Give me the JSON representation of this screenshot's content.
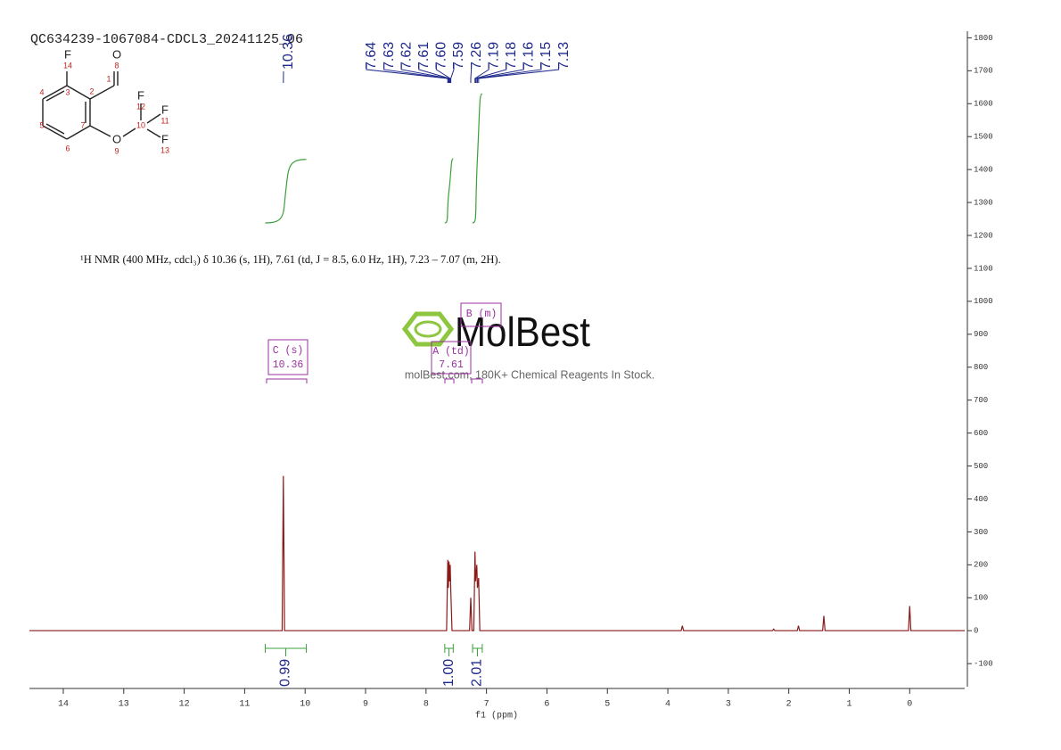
{
  "chart_data": {
    "type": "nmr",
    "title": "QC634239-1067084-CDCL3_20241125_06",
    "description": "¹H NMR (400 MHz, cdcl₃) δ 10.36 (s, 1H), 7.61 (td, J = 8.5, 6.0 Hz, 1H), 7.23 – 7.07 (m, 2H).",
    "x_label": "f1 (ppm)",
    "xlim": [
      14.56,
      -0.91
    ],
    "xticks": [
      14,
      13,
      12,
      11,
      10,
      9,
      8,
      7,
      6,
      5,
      4,
      3,
      2,
      1,
      0
    ],
    "ylim": [
      -170,
      1820
    ],
    "yticks": [
      -100,
      0,
      100,
      200,
      300,
      400,
      500,
      600,
      700,
      800,
      900,
      1000,
      1100,
      1200,
      1300,
      1400,
      1500,
      1600,
      1700,
      1800
    ],
    "color": "#8b1a1a",
    "x": [
      14.56,
      10.38,
      10.36,
      10.34,
      7.66,
      7.64,
      7.63,
      7.62,
      7.61,
      7.6,
      7.59,
      7.57,
      7.28,
      7.26,
      7.24,
      7.21,
      7.19,
      7.18,
      7.16,
      7.15,
      7.13,
      7.11,
      3.78,
      3.76,
      3.74,
      2.27,
      2.25,
      2.23,
      1.86,
      1.84,
      1.82,
      1.44,
      1.42,
      1.4,
      0.02,
      0,
      -0.02,
      -0.91
    ],
    "values": [
      0,
      0,
      470,
      0,
      0,
      215,
      130,
      210,
      150,
      200,
      120,
      0,
      0,
      100,
      0,
      0,
      240,
      150,
      200,
      130,
      160,
      0,
      0,
      15,
      0,
      0,
      5,
      0,
      0,
      15,
      0,
      0,
      45,
      0,
      0,
      75,
      0,
      0
    ],
    "peak_picks": [
      {
        "value": 10.36,
        "label": "10.36"
      },
      {
        "value": 7.64,
        "label": "7.64"
      },
      {
        "value": 7.63,
        "label": "7.63"
      },
      {
        "value": 7.62,
        "label": "7.62"
      },
      {
        "value": 7.61,
        "label": "7.61"
      },
      {
        "value": 7.6,
        "label": "7.60"
      },
      {
        "value": 7.59,
        "label": "7.59"
      },
      {
        "value": 7.26,
        "label": "7.26"
      },
      {
        "value": 7.19,
        "label": "7.19"
      },
      {
        "value": 7.18,
        "label": "7.18"
      },
      {
        "value": 7.16,
        "label": "7.16"
      },
      {
        "value": 7.15,
        "label": "7.15"
      },
      {
        "value": 7.13,
        "label": "7.13"
      }
    ],
    "integrals": {
      "ranges": [
        [
          10.66,
          9.98
        ],
        [
          7.69,
          7.55
        ],
        [
          7.23,
          7.07
        ]
      ],
      "values": [
        0.99,
        1.0,
        2.01
      ],
      "value_labels": [
        "0.99",
        "1.00",
        "2.01"
      ]
    },
    "multiplets": [
      {
        "name": "C (s)",
        "shift": 10.36
      },
      {
        "name": "A (td)",
        "shift": 7.61
      },
      {
        "name": "B (m)"
      }
    ]
  },
  "structure": {
    "labels": [
      "F",
      "14",
      "O",
      "8",
      "1",
      "3",
      "2",
      "4",
      "5",
      "6",
      "7",
      "F",
      "12",
      "11",
      "F",
      "10",
      "O",
      "9",
      "F",
      "13"
    ]
  },
  "watermark": {
    "logo": "MolBest",
    "tagline": "molBest.com, 180K+ Chemical Reagents In Stock."
  }
}
